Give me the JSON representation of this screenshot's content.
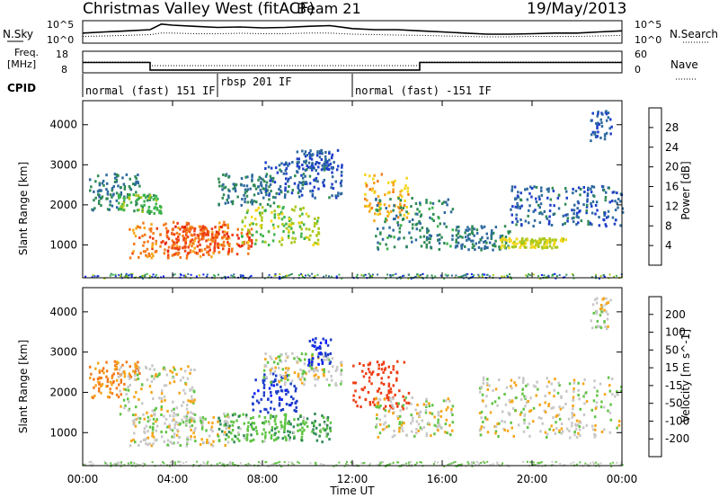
{
  "header": {
    "title": "Christmas Valley West (fitACF)",
    "beam": "Beam 21",
    "date": "19/May/2013"
  },
  "panels": {
    "nsky": {
      "left_label": "N.Sky",
      "right_label": "N.Search",
      "left_ticks": [
        "10^5",
        "10^0"
      ],
      "right_ticks": [
        "10^5",
        "10^0"
      ]
    },
    "freq": {
      "left_label_1": "Freq.",
      "left_label_2": "[MHz]",
      "left_ticks": [
        "18",
        "8"
      ],
      "right_label": "Nave",
      "right_ticks": [
        "60",
        "0"
      ]
    },
    "cpid": {
      "label": "CPID",
      "segments": [
        {
          "label": "normal (fast) 151 IF",
          "start_hr": 0,
          "end_hr": 6
        },
        {
          "label": "rbsp 201 IF",
          "start_hr": 6,
          "end_hr": 12
        },
        {
          "label": "normal (fast) -151 IF",
          "start_hr": 12,
          "end_hr": 24
        }
      ]
    }
  },
  "chart_data": [
    {
      "type": "line",
      "name": "nsky",
      "x_hours": [
        0,
        1,
        2,
        3,
        3.5,
        4,
        5,
        6,
        7,
        8,
        9,
        10,
        11,
        12,
        13,
        14,
        15,
        16,
        17,
        18,
        19,
        20,
        21,
        22,
        23,
        24
      ],
      "series": [
        {
          "name": "N.Sky",
          "values": [
            0.45,
            0.5,
            0.55,
            0.6,
            0.85,
            0.8,
            0.75,
            0.7,
            0.72,
            0.68,
            0.7,
            0.75,
            0.78,
            0.65,
            0.6,
            0.6,
            0.55,
            0.5,
            0.45,
            0.4,
            0.4,
            0.42,
            0.45,
            0.45,
            0.5,
            0.55
          ]
        },
        {
          "name": "N.Search",
          "values": [
            0.3,
            0.32,
            0.35,
            0.38,
            0.45,
            0.45,
            0.42,
            0.42,
            0.44,
            0.42,
            0.42,
            0.45,
            0.45,
            0.4,
            0.38,
            0.36,
            0.35,
            0.32,
            0.3,
            0.28,
            0.28,
            0.3,
            0.3,
            0.3,
            0.32,
            0.35
          ]
        }
      ]
    },
    {
      "type": "line",
      "name": "frequency",
      "series": [
        {
          "name": "Freq.",
          "points": [
            [
              0,
              12.8
            ],
            [
              3,
              12.8
            ],
            [
              3,
              9.3
            ],
            [
              15,
              9.3
            ],
            [
              15,
              12.8
            ],
            [
              24,
              12.8
            ]
          ]
        },
        {
          "name": "Nave",
          "points": [
            [
              0,
              30
            ],
            [
              3,
              30
            ],
            [
              3,
              20
            ],
            [
              15,
              20
            ],
            [
              15,
              30
            ],
            [
              24,
              30
            ]
          ]
        }
      ]
    },
    {
      "type": "heatmap",
      "name": "power",
      "ylabel": "Slant Range [km]",
      "yticks": [
        1000,
        2000,
        3000,
        4000
      ],
      "ylim": [
        180,
        4600
      ],
      "xlim_hours": [
        0,
        24
      ],
      "colorbar": {
        "label": "Power [dB]",
        "ticks": [
          "4",
          "8",
          "12",
          "16",
          "20",
          "24",
          "28"
        ],
        "colors": [
          "#0a1cff",
          "#1f3fc8",
          "#2e6a9e",
          "#2f8a55",
          "#3bb34b",
          "#a8c71a",
          "#f4d61a",
          "#f5a61a",
          "#f47a1a",
          "#ee3f14",
          "#e41a0d"
        ]
      },
      "regions": [
        {
          "t0": 0.2,
          "t1": 2.5,
          "r0": 1900,
          "r1": 2800,
          "v": 9
        },
        {
          "t0": 1.5,
          "t1": 3.5,
          "r0": 1800,
          "r1": 2300,
          "v": 14
        },
        {
          "t0": 2.0,
          "t1": 6.5,
          "r0": 700,
          "r1": 1600,
          "v": 25
        },
        {
          "t0": 3.5,
          "t1": 7.5,
          "r0": 800,
          "r1": 1500,
          "v": 28
        },
        {
          "t0": 6.0,
          "t1": 8.5,
          "r0": 2000,
          "r1": 2800,
          "v": 9
        },
        {
          "t0": 7.0,
          "t1": 10.5,
          "r0": 1000,
          "r1": 2000,
          "v": 16
        },
        {
          "t0": 8.0,
          "t1": 11.5,
          "r0": 2200,
          "r1": 3100,
          "v": 7
        },
        {
          "t0": 9.5,
          "t1": 11.5,
          "r0": 2900,
          "r1": 3400,
          "v": 6
        },
        {
          "t0": 12.5,
          "t1": 14.5,
          "r0": 1600,
          "r1": 2800,
          "v": 22
        },
        {
          "t0": 13.0,
          "t1": 16.5,
          "r0": 900,
          "r1": 2200,
          "v": 10
        },
        {
          "t0": 16.5,
          "t1": 19.0,
          "r0": 900,
          "r1": 1500,
          "v": 9
        },
        {
          "t0": 18.5,
          "t1": 21.5,
          "r0": 950,
          "r1": 1200,
          "v": 18
        },
        {
          "t0": 19.0,
          "t1": 24.0,
          "r0": 1500,
          "r1": 2500,
          "v": 7
        },
        {
          "t0": 22.5,
          "t1": 23.5,
          "r0": 3600,
          "r1": 4400,
          "v": 6
        }
      ]
    },
    {
      "type": "heatmap",
      "name": "velocity",
      "ylabel": "Slant Range [km]",
      "yticks": [
        1000,
        2000,
        3000,
        4000
      ],
      "ylim": [
        180,
        4600
      ],
      "xlim_hours": [
        0,
        24
      ],
      "colorbar": {
        "label": "Velocity [m s^-1]",
        "ticks": [
          "200",
          "100",
          "50",
          "15",
          "-15",
          "-50",
          "-100",
          "-200"
        ],
        "colors": [
          "#0a1cff",
          "#1f3fc8",
          "#2f8a55",
          "#60c444",
          "#c8c8c8",
          "#f5a61a",
          "#f47a1a",
          "#ee3f14",
          "#e41a0d"
        ]
      },
      "regions": [
        {
          "t0": 0.2,
          "t1": 2.5,
          "r0": 1900,
          "r1": 2800,
          "v": -60
        },
        {
          "t0": 1.5,
          "t1": 5.0,
          "r0": 1300,
          "r1": 2700,
          "v": 0
        },
        {
          "t0": 2.0,
          "t1": 6.5,
          "r0": 700,
          "r1": 1500,
          "v": 0
        },
        {
          "t0": 6.0,
          "t1": 11.0,
          "r0": 800,
          "r1": 1500,
          "v": 40
        },
        {
          "t0": 7.5,
          "t1": 9.5,
          "r0": 1500,
          "r1": 2500,
          "v": 180
        },
        {
          "t0": 8.0,
          "t1": 11.5,
          "r0": 2200,
          "r1": 3000,
          "v": 0
        },
        {
          "t0": 10.0,
          "t1": 11.0,
          "r0": 2700,
          "r1": 3400,
          "v": 190
        },
        {
          "t0": 12.0,
          "t1": 14.5,
          "r0": 1600,
          "r1": 2800,
          "v": -150
        },
        {
          "t0": 13.0,
          "t1": 16.5,
          "r0": 900,
          "r1": 1900,
          "v": 0
        },
        {
          "t0": 17.5,
          "t1": 24.0,
          "r0": 900,
          "r1": 2400,
          "v": 0
        },
        {
          "t0": 22.5,
          "t1": 23.5,
          "r0": 3600,
          "r1": 4400,
          "v": 0
        }
      ]
    }
  ],
  "xaxis": {
    "label": "Time UT",
    "ticks": [
      "00:00",
      "04:00",
      "08:00",
      "12:00",
      "16:00",
      "20:00",
      "00:00"
    ]
  }
}
